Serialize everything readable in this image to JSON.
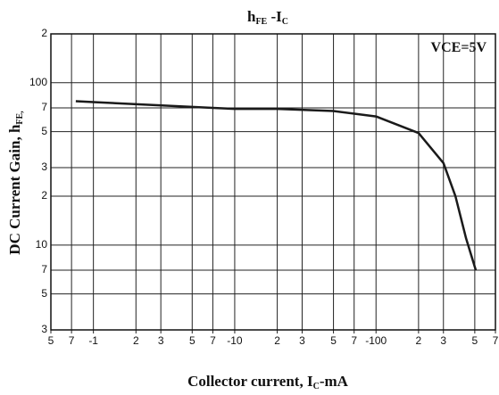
{
  "chart_data": {
    "type": "line",
    "title": [
      "h",
      "FE",
      " -I",
      "C"
    ],
    "x_label": [
      "Collector current,  I",
      "C",
      "-mA"
    ],
    "y_label": [
      "DC Current Gain, h",
      "FE,"
    ],
    "annotation": "VCE=5V",
    "x_log": true,
    "y_log": true,
    "grid": true,
    "xlim": [
      -0.5,
      -700
    ],
    "xticks": [
      {
        "value": -0.5,
        "label": "5"
      },
      {
        "value": -0.7,
        "label": "7"
      },
      -1.0,
      {
        "value": -2,
        "label": "2"
      },
      {
        "value": -3,
        "label": "3"
      },
      {
        "value": -5,
        "label": "5"
      },
      {
        "value": -7,
        "label": "7"
      },
      -10,
      {
        "value": -20,
        "label": "2"
      },
      {
        "value": -30,
        "label": "3"
      },
      {
        "value": -50,
        "label": "5"
      },
      {
        "value": -70,
        "label": "7"
      },
      -100,
      {
        "value": -200,
        "label": "2"
      },
      {
        "value": -300,
        "label": "3"
      },
      {
        "value": -500,
        "label": "5"
      },
      {
        "value": -700,
        "label": "7"
      }
    ],
    "ylim": [
      3,
      200
    ],
    "yticks": [
      3,
      5,
      7,
      10,
      {
        "value": 20,
        "label": "2"
      },
      {
        "value": 30,
        "label": "3"
      },
      {
        "value": 50,
        "label": "5"
      },
      {
        "value": 70,
        "label": "7"
      },
      100,
      {
        "value": 200,
        "label": "2"
      }
    ],
    "series": [
      {
        "color": "#1a1a1a",
        "x": [
          -0.75,
          -1,
          -7,
          -10,
          -20,
          -50,
          -100,
          -200,
          -300,
          -365,
          -434,
          -508
        ],
        "values": [
          77,
          76,
          70,
          69,
          69,
          67,
          62,
          49,
          32,
          20,
          11,
          7
        ]
      }
    ]
  }
}
